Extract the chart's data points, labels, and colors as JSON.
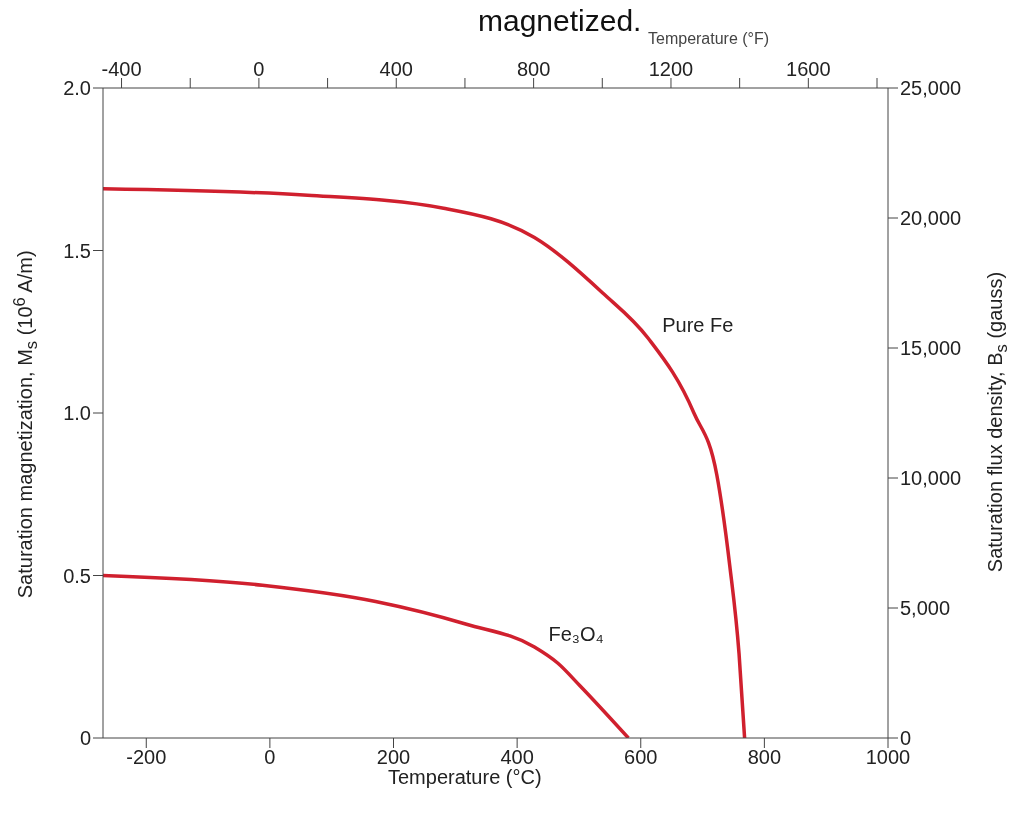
{
  "chart_data": {
    "type": "line",
    "annotations": [
      "magnetized."
    ],
    "xlabel": "Temperature (°C)",
    "x2label": "Temperature (°F)",
    "ylabel": "Saturation magnetization, M$_{s}$ (10$^{6}$ A/m)",
    "y2label": "Saturation flux density, B$_{s}$ (gauss)",
    "series": [
      {
        "name": "Pure Fe",
        "color": "#d0202e",
        "x": [
          -270,
          61,
          281,
          428,
          538,
          612,
          686,
          723,
          744,
          759,
          768
        ],
        "values": [
          1.69,
          1.67,
          1.63,
          1.54,
          1.37,
          1.23,
          1.0,
          0.81,
          0.53,
          0.26,
          0
        ]
      },
      {
        "name": "Fe₃O₄",
        "color": "#d0202e",
        "x": [
          -270,
          -12,
          171,
          318,
          428,
          466,
          502,
          580
        ],
        "values": [
          0.5,
          0.47,
          0.42,
          0.35,
          0.28,
          0.23,
          0.16,
          0
        ]
      }
    ],
    "xlim": [
      -270,
      1000
    ],
    "xticks": [
      -200,
      0,
      200,
      400,
      600,
      800,
      1000
    ],
    "x2lim": [
      -454,
      1832
    ],
    "x2ticks": [
      -400,
      {
        "value": -200,
        "label": null
      },
      0,
      {
        "value": 200,
        "label": null
      },
      400,
      {
        "value": 600,
        "label": null
      },
      800,
      {
        "value": 1000,
        "label": null
      },
      1200,
      {
        "value": 1400,
        "label": null
      },
      1600,
      {
        "value": 1800,
        "label": null
      }
    ],
    "ylim": [
      0,
      2
    ],
    "yticks": [
      0,
      0.5,
      {
        "value": 1,
        "label": "1.0"
      },
      1.5,
      {
        "value": 2,
        "label": "2.0"
      }
    ],
    "y2lim": [
      0,
      25000
    ],
    "y2ticks": [
      0,
      {
        "value": 5000,
        "label": "5,000"
      },
      {
        "value": 10000,
        "label": "10,000"
      },
      {
        "value": 15000,
        "label": "15,000"
      },
      {
        "value": 20000,
        "label": "20,000"
      },
      {
        "value": 25000,
        "label": "25,000"
      }
    ],
    "grid": false,
    "legend": false,
    "marker": "none",
    "line_style": "solid"
  }
}
